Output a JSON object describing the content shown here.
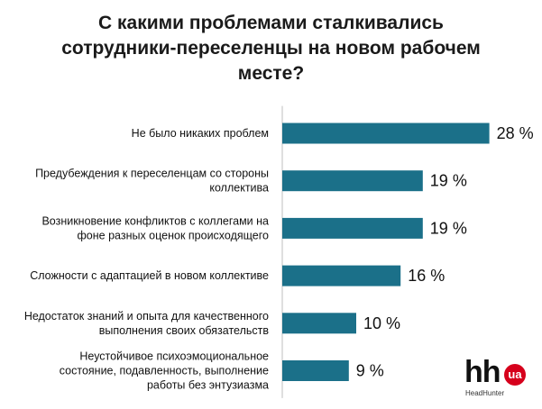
{
  "chart_data": {
    "type": "bar",
    "orientation": "horizontal",
    "title_lines": [
      "С какими проблемами сталкивались",
      "сотрудники-переселенцы на новом рабочем",
      "месте?"
    ],
    "categories": [
      [
        "Не было никаких проблем"
      ],
      [
        "Предубеждения к переселенцам со стороны",
        "коллектива"
      ],
      [
        "Возникновение конфликтов с коллегами на",
        "фоне разных оценок происходящего"
      ],
      [
        "Сложности с адаптацией в новом коллективе"
      ],
      [
        "Недостаток знаний и опыта для качественного",
        "выполнения своих обязательств"
      ],
      [
        "Неустойчивое психоэмоциональное",
        "состояние, подавленность, выполнение",
        "работы без энтузиазма"
      ]
    ],
    "values": [
      28,
      19,
      19,
      16,
      10,
      9
    ],
    "value_labels": [
      "28 %",
      "19 %",
      "19 %",
      "16 %",
      "10 %",
      "9 %"
    ],
    "bar_color": "#1b7089",
    "axis_color": "#bfbfbf",
    "grid": false,
    "legend": "none",
    "xlim": [
      0,
      30
    ]
  },
  "logo": {
    "text": "hh",
    "badge": "ua",
    "subtitle": "HeadHunter",
    "brand_color": "#d6001c"
  }
}
